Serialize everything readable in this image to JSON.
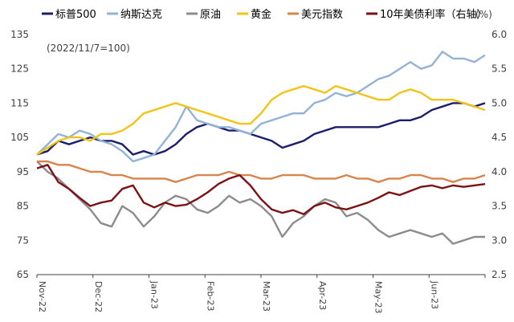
{
  "chart_data": {
    "type": "line",
    "note": "(2022/11/7=100)",
    "right_unit": "(%)",
    "x_ticks": [
      "Nov-22",
      "Dec-22",
      "Jan-23",
      "Feb-23",
      "Mar-23",
      "Apr-23",
      "May-23",
      "Jun-23"
    ],
    "left_axis": {
      "ylim": [
        65,
        135
      ],
      "ticks": [
        "65",
        "75",
        "85",
        "95",
        "105",
        "115",
        "125",
        "135"
      ]
    },
    "right_axis": {
      "ylim": [
        2.5,
        6.0
      ],
      "ticks": [
        "2.5",
        "3.0",
        "3.5",
        "4.0",
        "4.5",
        "5.0",
        "5.5",
        "6.0"
      ]
    },
    "series": [
      {
        "name": "标普500",
        "color": "#1a1e6b",
        "axis": "left",
        "points": [
          [
            0,
            100
          ],
          [
            5,
            101
          ],
          [
            10,
            104
          ],
          [
            15,
            103
          ],
          [
            20,
            104
          ],
          [
            25,
            105
          ],
          [
            30,
            104
          ],
          [
            35,
            104
          ],
          [
            40,
            103
          ],
          [
            45,
            100
          ],
          [
            50,
            101
          ],
          [
            55,
            100
          ],
          [
            60,
            101
          ],
          [
            65,
            103
          ],
          [
            70,
            106
          ],
          [
            75,
            108
          ],
          [
            80,
            109
          ],
          [
            85,
            108
          ],
          [
            90,
            107
          ],
          [
            95,
            107
          ],
          [
            100,
            106
          ],
          [
            105,
            105
          ],
          [
            110,
            104
          ],
          [
            115,
            102
          ],
          [
            120,
            103
          ],
          [
            125,
            104
          ],
          [
            130,
            106
          ],
          [
            135,
            107
          ],
          [
            140,
            108
          ],
          [
            145,
            108
          ],
          [
            150,
            108
          ],
          [
            155,
            108
          ],
          [
            160,
            108
          ],
          [
            165,
            109
          ],
          [
            170,
            110
          ],
          [
            175,
            110
          ],
          [
            180,
            111
          ],
          [
            185,
            113
          ],
          [
            190,
            114
          ],
          [
            195,
            115
          ],
          [
            200,
            115
          ],
          [
            205,
            114
          ],
          [
            210,
            115
          ]
        ]
      },
      {
        "name": "纳斯达克",
        "color": "#93b3d6",
        "axis": "left",
        "points": [
          [
            0,
            100
          ],
          [
            5,
            103
          ],
          [
            10,
            106
          ],
          [
            15,
            105
          ],
          [
            20,
            107
          ],
          [
            25,
            106
          ],
          [
            30,
            104
          ],
          [
            35,
            103
          ],
          [
            40,
            101
          ],
          [
            45,
            98
          ],
          [
            50,
            99
          ],
          [
            55,
            100
          ],
          [
            60,
            104
          ],
          [
            65,
            108
          ],
          [
            70,
            114
          ],
          [
            75,
            110
          ],
          [
            80,
            109
          ],
          [
            85,
            108
          ],
          [
            90,
            108
          ],
          [
            95,
            107
          ],
          [
            100,
            106
          ],
          [
            105,
            109
          ],
          [
            110,
            110
          ],
          [
            115,
            111
          ],
          [
            120,
            112
          ],
          [
            125,
            112
          ],
          [
            130,
            115
          ],
          [
            135,
            116
          ],
          [
            140,
            118
          ],
          [
            145,
            117
          ],
          [
            150,
            118
          ],
          [
            155,
            120
          ],
          [
            160,
            122
          ],
          [
            165,
            123
          ],
          [
            170,
            125
          ],
          [
            175,
            127
          ],
          [
            180,
            125
          ],
          [
            185,
            126
          ],
          [
            190,
            130
          ],
          [
            195,
            128
          ],
          [
            200,
            128
          ],
          [
            205,
            127
          ],
          [
            210,
            129
          ]
        ]
      },
      {
        "name": "原油",
        "color": "#8c8c8c",
        "axis": "left",
        "points": [
          [
            0,
            98
          ],
          [
            5,
            95
          ],
          [
            10,
            93
          ],
          [
            15,
            90
          ],
          [
            20,
            87
          ],
          [
            25,
            84
          ],
          [
            30,
            80
          ],
          [
            35,
            79
          ],
          [
            40,
            85
          ],
          [
            45,
            83
          ],
          [
            50,
            79
          ],
          [
            55,
            82
          ],
          [
            60,
            86
          ],
          [
            65,
            88
          ],
          [
            70,
            87
          ],
          [
            75,
            84
          ],
          [
            80,
            83
          ],
          [
            85,
            85
          ],
          [
            90,
            88
          ],
          [
            95,
            86
          ],
          [
            100,
            87
          ],
          [
            105,
            85
          ],
          [
            110,
            82
          ],
          [
            115,
            76
          ],
          [
            120,
            80
          ],
          [
            125,
            82
          ],
          [
            130,
            85
          ],
          [
            135,
            87
          ],
          [
            140,
            86
          ],
          [
            145,
            82
          ],
          [
            150,
            83
          ],
          [
            155,
            81
          ],
          [
            160,
            78
          ],
          [
            165,
            76
          ],
          [
            170,
            77
          ],
          [
            175,
            78
          ],
          [
            180,
            77
          ],
          [
            185,
            76
          ],
          [
            190,
            77
          ],
          [
            195,
            74
          ],
          [
            200,
            75
          ],
          [
            205,
            76
          ],
          [
            210,
            76
          ]
        ]
      },
      {
        "name": "黄金",
        "color": "#f2c418",
        "axis": "left",
        "points": [
          [
            0,
            100
          ],
          [
            5,
            102
          ],
          [
            10,
            104
          ],
          [
            15,
            105
          ],
          [
            20,
            105
          ],
          [
            25,
            104
          ],
          [
            30,
            106
          ],
          [
            35,
            106
          ],
          [
            40,
            107
          ],
          [
            45,
            109
          ],
          [
            50,
            112
          ],
          [
            55,
            113
          ],
          [
            60,
            114
          ],
          [
            65,
            115
          ],
          [
            70,
            114
          ],
          [
            75,
            113
          ],
          [
            80,
            112
          ],
          [
            85,
            111
          ],
          [
            90,
            110
          ],
          [
            95,
            109
          ],
          [
            100,
            109
          ],
          [
            105,
            112
          ],
          [
            110,
            116
          ],
          [
            115,
            118
          ],
          [
            120,
            119
          ],
          [
            125,
            120
          ],
          [
            130,
            119
          ],
          [
            135,
            118
          ],
          [
            140,
            120
          ],
          [
            145,
            119
          ],
          [
            150,
            118
          ],
          [
            155,
            117
          ],
          [
            160,
            116
          ],
          [
            165,
            116
          ],
          [
            170,
            118
          ],
          [
            175,
            119
          ],
          [
            180,
            118
          ],
          [
            185,
            116
          ],
          [
            190,
            116
          ],
          [
            195,
            116
          ],
          [
            200,
            115
          ],
          [
            205,
            114
          ],
          [
            210,
            113
          ]
        ]
      },
      {
        "name": "美元指数",
        "color": "#d8844a",
        "axis": "left",
        "points": [
          [
            0,
            98
          ],
          [
            5,
            98
          ],
          [
            10,
            97
          ],
          [
            15,
            97
          ],
          [
            20,
            96
          ],
          [
            25,
            95
          ],
          [
            30,
            95
          ],
          [
            35,
            94
          ],
          [
            40,
            94
          ],
          [
            45,
            93
          ],
          [
            50,
            93
          ],
          [
            55,
            93
          ],
          [
            60,
            93
          ],
          [
            65,
            92
          ],
          [
            70,
            93
          ],
          [
            75,
            94
          ],
          [
            80,
            94
          ],
          [
            85,
            94
          ],
          [
            90,
            95
          ],
          [
            95,
            94
          ],
          [
            100,
            94
          ],
          [
            105,
            93
          ],
          [
            110,
            93
          ],
          [
            115,
            94
          ],
          [
            120,
            94
          ],
          [
            125,
            94
          ],
          [
            130,
            93
          ],
          [
            135,
            93
          ],
          [
            140,
            93
          ],
          [
            145,
            94
          ],
          [
            150,
            93
          ],
          [
            155,
            93
          ],
          [
            160,
            92
          ],
          [
            165,
            93
          ],
          [
            170,
            93
          ],
          [
            175,
            94
          ],
          [
            180,
            94
          ],
          [
            185,
            93
          ],
          [
            190,
            93
          ],
          [
            195,
            92
          ],
          [
            200,
            93
          ],
          [
            205,
            93
          ],
          [
            210,
            94
          ]
        ]
      },
      {
        "name": "10年美债利率（右轴）",
        "color": "#7c1216",
        "axis": "right",
        "points": [
          [
            0,
            4.05
          ],
          [
            5,
            4.1
          ],
          [
            10,
            3.85
          ],
          [
            15,
            3.75
          ],
          [
            20,
            3.62
          ],
          [
            25,
            3.5
          ],
          [
            30,
            3.55
          ],
          [
            35,
            3.58
          ],
          [
            40,
            3.75
          ],
          [
            45,
            3.8
          ],
          [
            50,
            3.55
          ],
          [
            55,
            3.48
          ],
          [
            60,
            3.55
          ],
          [
            65,
            3.5
          ],
          [
            70,
            3.52
          ],
          [
            75,
            3.6
          ],
          [
            80,
            3.7
          ],
          [
            85,
            3.82
          ],
          [
            90,
            3.9
          ],
          [
            95,
            3.95
          ],
          [
            100,
            3.8
          ],
          [
            105,
            3.6
          ],
          [
            110,
            3.45
          ],
          [
            115,
            3.4
          ],
          [
            120,
            3.44
          ],
          [
            125,
            3.38
          ],
          [
            130,
            3.5
          ],
          [
            135,
            3.55
          ],
          [
            140,
            3.48
          ],
          [
            145,
            3.45
          ],
          [
            150,
            3.5
          ],
          [
            155,
            3.55
          ],
          [
            160,
            3.62
          ],
          [
            165,
            3.7
          ],
          [
            170,
            3.66
          ],
          [
            175,
            3.72
          ],
          [
            180,
            3.78
          ],
          [
            185,
            3.8
          ],
          [
            190,
            3.76
          ],
          [
            195,
            3.8
          ],
          [
            200,
            3.78
          ],
          [
            205,
            3.8
          ],
          [
            210,
            3.82
          ]
        ]
      }
    ]
  }
}
